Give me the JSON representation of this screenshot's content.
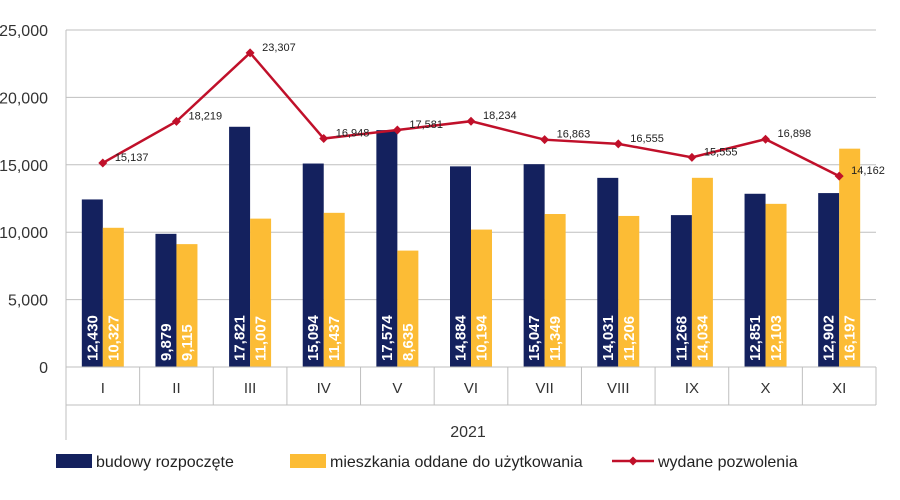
{
  "chart_data": {
    "type": "bar",
    "categories": [
      "I",
      "II",
      "III",
      "IV",
      "V",
      "VI",
      "VII",
      "VIII",
      "IX",
      "X",
      "XI"
    ],
    "group_label": "2021",
    "series": [
      {
        "name": "budowy rozpoczęte",
        "kind": "bar",
        "color": "#14215e",
        "values": [
          12430,
          9879,
          17821,
          15094,
          17574,
          14884,
          15047,
          14031,
          11268,
          12851,
          12902
        ],
        "labels": [
          "12,430",
          "9,879",
          "17,821",
          "15,094",
          "17,574",
          "14,884",
          "15,047",
          "14,031",
          "11,268",
          "12,851",
          "12,902"
        ]
      },
      {
        "name": "mieszkania oddane do użytkowania",
        "kind": "bar",
        "color": "#fcbc35",
        "values": [
          10327,
          9115,
          11007,
          11437,
          8635,
          10194,
          11349,
          11206,
          14034,
          12103,
          16197
        ],
        "labels": [
          "10,327",
          "9,115",
          "11,007",
          "11,437",
          "8,635",
          "10,194",
          "11,349",
          "11,206",
          "14,034",
          "12,103",
          "16,197"
        ]
      },
      {
        "name": "wydane pozwolenia",
        "kind": "line",
        "color": "#c0102a",
        "values": [
          15137,
          18219,
          23307,
          16948,
          17581,
          18234,
          16863,
          16555,
          15555,
          16898,
          14162
        ],
        "labels": [
          "15,137",
          "18,219",
          "23,307",
          "16,948",
          "17,581",
          "18,234",
          "16,863",
          "16,555",
          "15,555",
          "16,898",
          "14,162"
        ]
      }
    ],
    "y_ticks": [
      0,
      5000,
      10000,
      15000,
      20000,
      25000
    ],
    "y_tick_labels": [
      "0",
      "5,000",
      "10,000",
      "15,000",
      "20,000",
      "25,000"
    ],
    "ylim": [
      0,
      25000
    ],
    "grid": true,
    "legend_position": "bottom"
  }
}
